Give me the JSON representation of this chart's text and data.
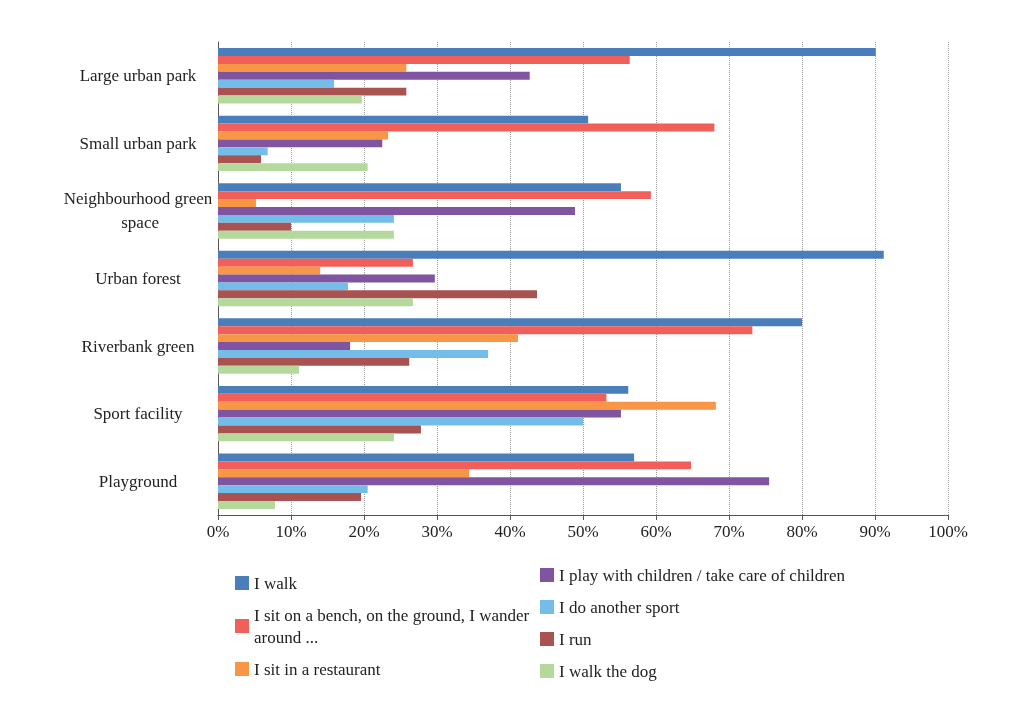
{
  "chart_data": {
    "type": "bar",
    "orientation": "horizontal",
    "categories": [
      "Large urban park",
      "Small urban park",
      "Neighbourhood green space",
      "Urban forest",
      "Riverbank green",
      "Sport facility",
      "Playground"
    ],
    "series": [
      {
        "name": "I walk",
        "color": "#4a7ebb",
        "values": [
          90.1,
          50.7,
          55.2,
          91.2,
          80,
          56.2,
          57
        ]
      },
      {
        "name": "I sit on a bench, on the ground, I wander around ...",
        "color": "#f15f5a",
        "values": [
          56.4,
          68,
          59.3,
          26.7,
          73.2,
          53.2,
          64.8
        ]
      },
      {
        "name": "I sit in a restaurant",
        "color": "#f79646",
        "values": [
          25.8,
          23.3,
          5.2,
          14,
          41.1,
          68.2,
          34.4
        ]
      },
      {
        "name": "I play with children / take care of children",
        "color": "#7f54a0",
        "values": [
          42.7,
          22.5,
          48.9,
          29.7,
          18.1,
          55.2,
          75.5
        ]
      },
      {
        "name": "I do another sport",
        "color": "#74bde8",
        "values": [
          15.9,
          6.8,
          24.1,
          17.8,
          37,
          50,
          20.5
        ]
      },
      {
        "name": "I run",
        "color": "#a85252",
        "values": [
          25.8,
          5.9,
          10,
          43.7,
          26.2,
          27.8,
          19.6
        ]
      },
      {
        "name": "I walk the dog",
        "color": "#b5d99c",
        "values": [
          19.7,
          20.5,
          24.1,
          26.7,
          11.1,
          24.1,
          7.8
        ]
      }
    ],
    "xlim": [
      0,
      100
    ],
    "xticks": [
      {
        "value": 0,
        "label": "0%"
      },
      {
        "value": 10,
        "label": "10%"
      },
      {
        "value": 20,
        "label": "20%"
      },
      {
        "value": 30,
        "label": "30%"
      },
      {
        "value": 40,
        "label": "40%"
      },
      {
        "value": 50,
        "label": "50%"
      },
      {
        "value": 60,
        "label": "60%"
      },
      {
        "value": 70,
        "label": "70%"
      },
      {
        "value": 80,
        "label": "80%"
      },
      {
        "value": 90,
        "label": "90%"
      },
      {
        "value": 100,
        "label": "100%"
      }
    ],
    "grid": "x",
    "legend": "bottom"
  }
}
